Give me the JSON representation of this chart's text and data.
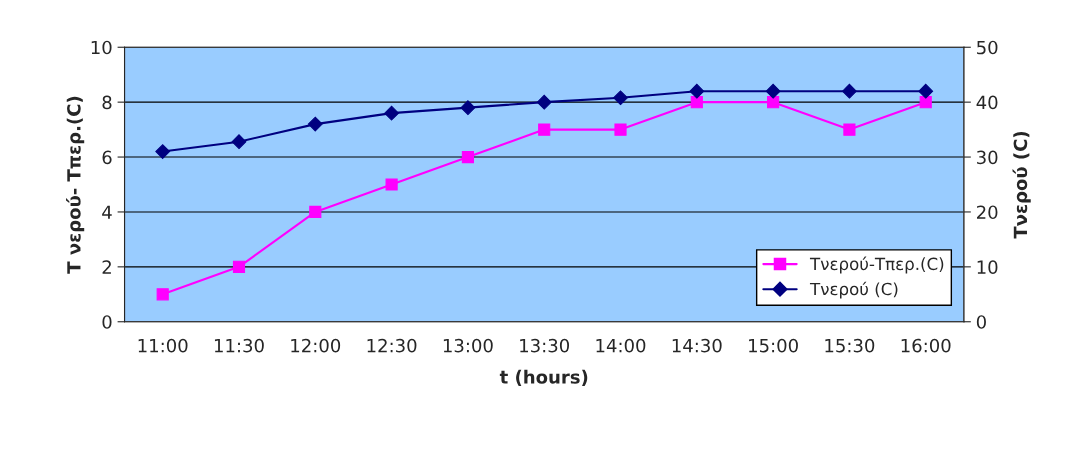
{
  "chart_data": {
    "type": "line",
    "xlabel": "t (hours)",
    "ylabel": "T νερού- Τπερ.(C)",
    "y2label": "Τνερού (C)",
    "categories": [
      "11:00",
      "11:30",
      "12:00",
      "12:30",
      "13:00",
      "13:30",
      "14:00",
      "14:30",
      "15:00",
      "15:30",
      "16:00"
    ],
    "series": [
      {
        "name": "Τνερού-Τπερ.(C)",
        "color": "#ff00ff",
        "marker": "square",
        "values": [
          1,
          2,
          4,
          5,
          6,
          7,
          7,
          8,
          8,
          7,
          8
        ]
      },
      {
        "name": "Τνερού (C)",
        "color": "#000080",
        "marker": "diamond",
        "axis": "y2",
        "values": [
          31,
          32.8,
          36,
          38,
          39,
          40,
          40.8,
          42,
          42,
          42,
          42
        ]
      }
    ],
    "ylim": [
      0,
      10
    ],
    "yticks": [
      0,
      2,
      4,
      6,
      8,
      10
    ],
    "y2lim": [
      0,
      50
    ],
    "y2ticks": [
      0,
      10,
      20,
      30,
      40,
      50
    ],
    "grid": "y",
    "legend": "bottom right"
  }
}
